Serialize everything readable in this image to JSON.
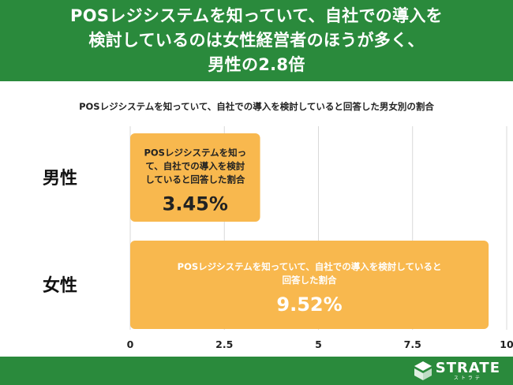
{
  "header": {
    "title_lines": [
      "POSレジシステムを知っていて、自社での導入を",
      "検討しているのは女性経営者のほうが多く、",
      "男性の2.8倍"
    ]
  },
  "chart_data": {
    "type": "bar",
    "orientation": "horizontal",
    "title": "POSレジシステムを知っていて、自社での導入を検討していると回答した男女別の割合",
    "categories": [
      "男性",
      "女性"
    ],
    "values": [
      3.45,
      9.52
    ],
    "value_labels": [
      "3.45%",
      "9.52%"
    ],
    "bar_captions": [
      [
        "POSレジシステムを知っ",
        "て、自社での導入を検討",
        "していると回答した割合"
      ],
      [
        "POSレジシステムを知っていて、自社での導入を検討していると",
        "回答した割合"
      ]
    ],
    "xlim": [
      0,
      10
    ],
    "xticks": [
      0,
      2.5,
      5,
      7.5,
      10
    ],
    "xtick_labels": [
      "0",
      "2.5",
      "5",
      "7.5",
      "10"
    ],
    "grid": true,
    "bar_color": "#f8b84e",
    "grid_color": "#d9d9d9"
  },
  "footer": {
    "brand": "STRATE",
    "brand_sub": "ストラテ"
  },
  "colors": {
    "header_bg": "#2a8a3c",
    "footer_bg": "#2a8a3c"
  }
}
